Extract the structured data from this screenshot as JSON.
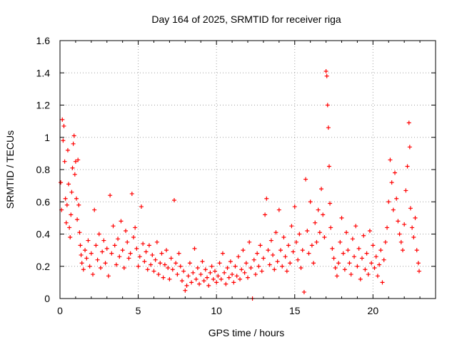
{
  "chart_data": {
    "type": "scatter",
    "title": "Day 164 of 2025, SRMTID for receiver riga",
    "xlabel": "GPS time / hours",
    "ylabel": "SRMTID / TECUs",
    "xlim": [
      0,
      24
    ],
    "ylim": [
      0,
      1.6
    ],
    "x_ticks": [
      0,
      5,
      10,
      15,
      20
    ],
    "x_tick_labels": [
      "0",
      "5",
      "10",
      "15",
      "20"
    ],
    "y_ticks": [
      0,
      0.2,
      0.4,
      0.6,
      0.8,
      1,
      1.2,
      1.4,
      1.6
    ],
    "y_tick_labels": [
      "0",
      "0.2",
      "0.4",
      "0.6",
      "0.8",
      "1",
      "1.2",
      "1.4",
      "1.6"
    ],
    "grid": true,
    "marker": "+",
    "marker_color": "#ff0000",
    "series": [
      {
        "name": "SRMTID",
        "points": [
          [
            0.05,
            0.72
          ],
          [
            0.1,
            0.55
          ],
          [
            0.15,
            1.11
          ],
          [
            0.2,
            0.98
          ],
          [
            0.25,
            1.07
          ],
          [
            0.3,
            0.85
          ],
          [
            0.35,
            0.62
          ],
          [
            0.4,
            0.47
          ],
          [
            0.45,
            0.58
          ],
          [
            0.5,
            0.92
          ],
          [
            0.55,
            0.71
          ],
          [
            0.6,
            0.44
          ],
          [
            0.65,
            0.38
          ],
          [
            0.7,
            0.52
          ],
          [
            0.75,
            0.66
          ],
          [
            0.8,
            0.81
          ],
          [
            0.85,
            0.96
          ],
          [
            0.9,
            1.01
          ],
          [
            0.95,
            0.77
          ],
          [
            1.0,
            0.85
          ],
          [
            1.05,
            0.62
          ],
          [
            1.1,
            0.49
          ],
          [
            1.15,
            0.86
          ],
          [
            1.2,
            0.58
          ],
          [
            1.25,
            0.41
          ],
          [
            1.3,
            0.33
          ],
          [
            1.35,
            0.27
          ],
          [
            1.4,
            0.22
          ],
          [
            1.5,
            0.18
          ],
          [
            1.6,
            0.3
          ],
          [
            1.7,
            0.25
          ],
          [
            1.8,
            0.36
          ],
          [
            1.9,
            0.2
          ],
          [
            2.0,
            0.28
          ],
          [
            2.1,
            0.15
          ],
          [
            2.2,
            0.55
          ],
          [
            2.3,
            0.33
          ],
          [
            2.4,
            0.24
          ],
          [
            2.5,
            0.4
          ],
          [
            2.6,
            0.19
          ],
          [
            2.7,
            0.29
          ],
          [
            2.8,
            0.36
          ],
          [
            2.9,
            0.22
          ],
          [
            3.0,
            0.31
          ],
          [
            3.1,
            0.14
          ],
          [
            3.2,
            0.64
          ],
          [
            3.3,
            0.28
          ],
          [
            3.4,
            0.45
          ],
          [
            3.5,
            0.33
          ],
          [
            3.6,
            0.21
          ],
          [
            3.7,
            0.37
          ],
          [
            3.8,
            0.26
          ],
          [
            3.9,
            0.48
          ],
          [
            4.0,
            0.3
          ],
          [
            4.1,
            0.19
          ],
          [
            4.2,
            0.42
          ],
          [
            4.3,
            0.35
          ],
          [
            4.4,
            0.25
          ],
          [
            4.5,
            0.28
          ],
          [
            4.6,
            0.65
          ],
          [
            4.7,
            0.38
          ],
          [
            4.8,
            0.44
          ],
          [
            4.9,
            0.31
          ],
          [
            5.0,
            0.2
          ],
          [
            5.1,
            0.26
          ],
          [
            5.2,
            0.57
          ],
          [
            5.3,
            0.34
          ],
          [
            5.4,
            0.23
          ],
          [
            5.5,
            0.29
          ],
          [
            5.6,
            0.18
          ],
          [
            5.7,
            0.33
          ],
          [
            5.8,
            0.21
          ],
          [
            5.9,
            0.27
          ],
          [
            6.0,
            0.17
          ],
          [
            6.1,
            0.24
          ],
          [
            6.2,
            0.35
          ],
          [
            6.3,
            0.15
          ],
          [
            6.4,
            0.22
          ],
          [
            6.5,
            0.28
          ],
          [
            6.6,
            0.13
          ],
          [
            6.7,
            0.21
          ],
          [
            6.8,
            0.3
          ],
          [
            6.9,
            0.19
          ],
          [
            7.0,
            0.12
          ],
          [
            7.1,
            0.25
          ],
          [
            7.2,
            0.18
          ],
          [
            7.3,
            0.61
          ],
          [
            7.4,
            0.22
          ],
          [
            7.5,
            0.15
          ],
          [
            7.6,
            0.28
          ],
          [
            7.7,
            0.2
          ],
          [
            7.8,
            0.11
          ],
          [
            7.9,
            0.17
          ],
          [
            8.0,
            0.05
          ],
          [
            8.1,
            0.08
          ],
          [
            8.2,
            0.14
          ],
          [
            8.3,
            0.22
          ],
          [
            8.4,
            0.1
          ],
          [
            8.5,
            0.16
          ],
          [
            8.6,
            0.31
          ],
          [
            8.7,
            0.12
          ],
          [
            8.8,
            0.19
          ],
          [
            8.9,
            0.09
          ],
          [
            9.0,
            0.15
          ],
          [
            9.1,
            0.23
          ],
          [
            9.2,
            0.11
          ],
          [
            9.3,
            0.18
          ],
          [
            9.4,
            0.13
          ],
          [
            9.5,
            0.08
          ],
          [
            9.6,
            0.16
          ],
          [
            9.7,
            0.2
          ],
          [
            9.8,
            0.12
          ],
          [
            9.9,
            0.17
          ],
          [
            10.0,
            0.1
          ],
          [
            10.1,
            0.14
          ],
          [
            10.2,
            0.22
          ],
          [
            10.3,
            0.12
          ],
          [
            10.4,
            0.28
          ],
          [
            10.5,
            0.16
          ],
          [
            10.6,
            0.09
          ],
          [
            10.7,
            0.19
          ],
          [
            10.8,
            0.13
          ],
          [
            10.9,
            0.23
          ],
          [
            11.0,
            0.15
          ],
          [
            11.1,
            0.1
          ],
          [
            11.2,
            0.2
          ],
          [
            11.3,
            0.14
          ],
          [
            11.4,
            0.26
          ],
          [
            11.5,
            0.12
          ],
          [
            11.6,
            0.18
          ],
          [
            11.7,
            0.3
          ],
          [
            11.8,
            0.16
          ],
          [
            11.9,
            0.22
          ],
          [
            12.0,
            0.13
          ],
          [
            12.1,
            0.35
          ],
          [
            12.2,
            0.19
          ],
          [
            12.3,
            0.0
          ],
          [
            12.4,
            0.24
          ],
          [
            12.5,
            0.15
          ],
          [
            12.6,
            0.28
          ],
          [
            12.7,
            0.2
          ],
          [
            12.8,
            0.33
          ],
          [
            12.9,
            0.17
          ],
          [
            13.0,
            0.25
          ],
          [
            13.1,
            0.52
          ],
          [
            13.2,
            0.62
          ],
          [
            13.3,
            0.3
          ],
          [
            13.4,
            0.21
          ],
          [
            13.5,
            0.36
          ],
          [
            13.6,
            0.27
          ],
          [
            13.7,
            0.18
          ],
          [
            13.8,
            0.41
          ],
          [
            13.9,
            0.23
          ],
          [
            14.0,
            0.55
          ],
          [
            14.1,
            0.3
          ],
          [
            14.2,
            0.2
          ],
          [
            14.3,
            0.38
          ],
          [
            14.4,
            0.26
          ],
          [
            14.5,
            0.17
          ],
          [
            14.6,
            0.33
          ],
          [
            14.7,
            0.22
          ],
          [
            14.8,
            0.45
          ],
          [
            14.9,
            0.29
          ],
          [
            15.0,
            0.57
          ],
          [
            15.1,
            0.35
          ],
          [
            15.2,
            0.24
          ],
          [
            15.3,
            0.4
          ],
          [
            15.4,
            0.19
          ],
          [
            15.5,
            0.3
          ],
          [
            15.6,
            0.04
          ],
          [
            15.7,
            0.74
          ],
          [
            15.8,
            0.42
          ],
          [
            15.9,
            0.28
          ],
          [
            16.0,
            0.6
          ],
          [
            16.1,
            0.33
          ],
          [
            16.2,
            0.22
          ],
          [
            16.3,
            0.47
          ],
          [
            16.4,
            0.35
          ],
          [
            16.5,
            0.55
          ],
          [
            16.6,
            0.41
          ],
          [
            16.7,
            0.68
          ],
          [
            16.8,
            0.52
          ],
          [
            16.9,
            0.38
          ],
          [
            17.0,
            1.41
          ],
          [
            17.05,
            1.38
          ],
          [
            17.1,
            1.2
          ],
          [
            17.15,
            1.06
          ],
          [
            17.2,
            0.82
          ],
          [
            17.25,
            0.59
          ],
          [
            17.3,
            0.44
          ],
          [
            17.4,
            0.31
          ],
          [
            17.5,
            0.25
          ],
          [
            17.6,
            0.19
          ],
          [
            17.7,
            0.14
          ],
          [
            17.8,
            0.22
          ],
          [
            17.9,
            0.35
          ],
          [
            18.0,
            0.5
          ],
          [
            18.1,
            0.28
          ],
          [
            18.2,
            0.18
          ],
          [
            18.3,
            0.41
          ],
          [
            18.4,
            0.3
          ],
          [
            18.5,
            0.22
          ],
          [
            18.6,
            0.15
          ],
          [
            18.7,
            0.37
          ],
          [
            18.8,
            0.26
          ],
          [
            18.9,
            0.45
          ],
          [
            19.0,
            0.2
          ],
          [
            19.1,
            0.31
          ],
          [
            19.2,
            0.12
          ],
          [
            19.3,
            0.25
          ],
          [
            19.4,
            0.39
          ],
          [
            19.5,
            0.18
          ],
          [
            19.6,
            0.28
          ],
          [
            19.7,
            0.15
          ],
          [
            19.8,
            0.42
          ],
          [
            19.9,
            0.22
          ],
          [
            20.0,
            0.33
          ],
          [
            20.1,
            0.19
          ],
          [
            20.2,
            0.26
          ],
          [
            20.3,
            0.14
          ],
          [
            20.4,
            0.21
          ],
          [
            20.5,
            0.3
          ],
          [
            20.6,
            0.1
          ],
          [
            20.7,
            0.24
          ],
          [
            20.8,
            0.35
          ],
          [
            20.9,
            0.44
          ],
          [
            21.0,
            0.6
          ],
          [
            21.1,
            0.86
          ],
          [
            21.2,
            0.72
          ],
          [
            21.3,
            0.55
          ],
          [
            21.4,
            0.78
          ],
          [
            21.5,
            0.62
          ],
          [
            21.6,
            0.48
          ],
          [
            21.7,
            0.4
          ],
          [
            21.8,
            0.35
          ],
          [
            21.9,
            0.3
          ],
          [
            22.0,
            0.46
          ],
          [
            22.1,
            0.67
          ],
          [
            22.2,
            0.82
          ],
          [
            22.3,
            1.09
          ],
          [
            22.35,
            0.94
          ],
          [
            22.4,
            0.56
          ],
          [
            22.5,
            0.44
          ],
          [
            22.6,
            0.38
          ],
          [
            22.7,
            0.5
          ],
          [
            22.8,
            0.3
          ],
          [
            22.9,
            0.22
          ],
          [
            22.95,
            0.17
          ]
        ]
      }
    ]
  }
}
